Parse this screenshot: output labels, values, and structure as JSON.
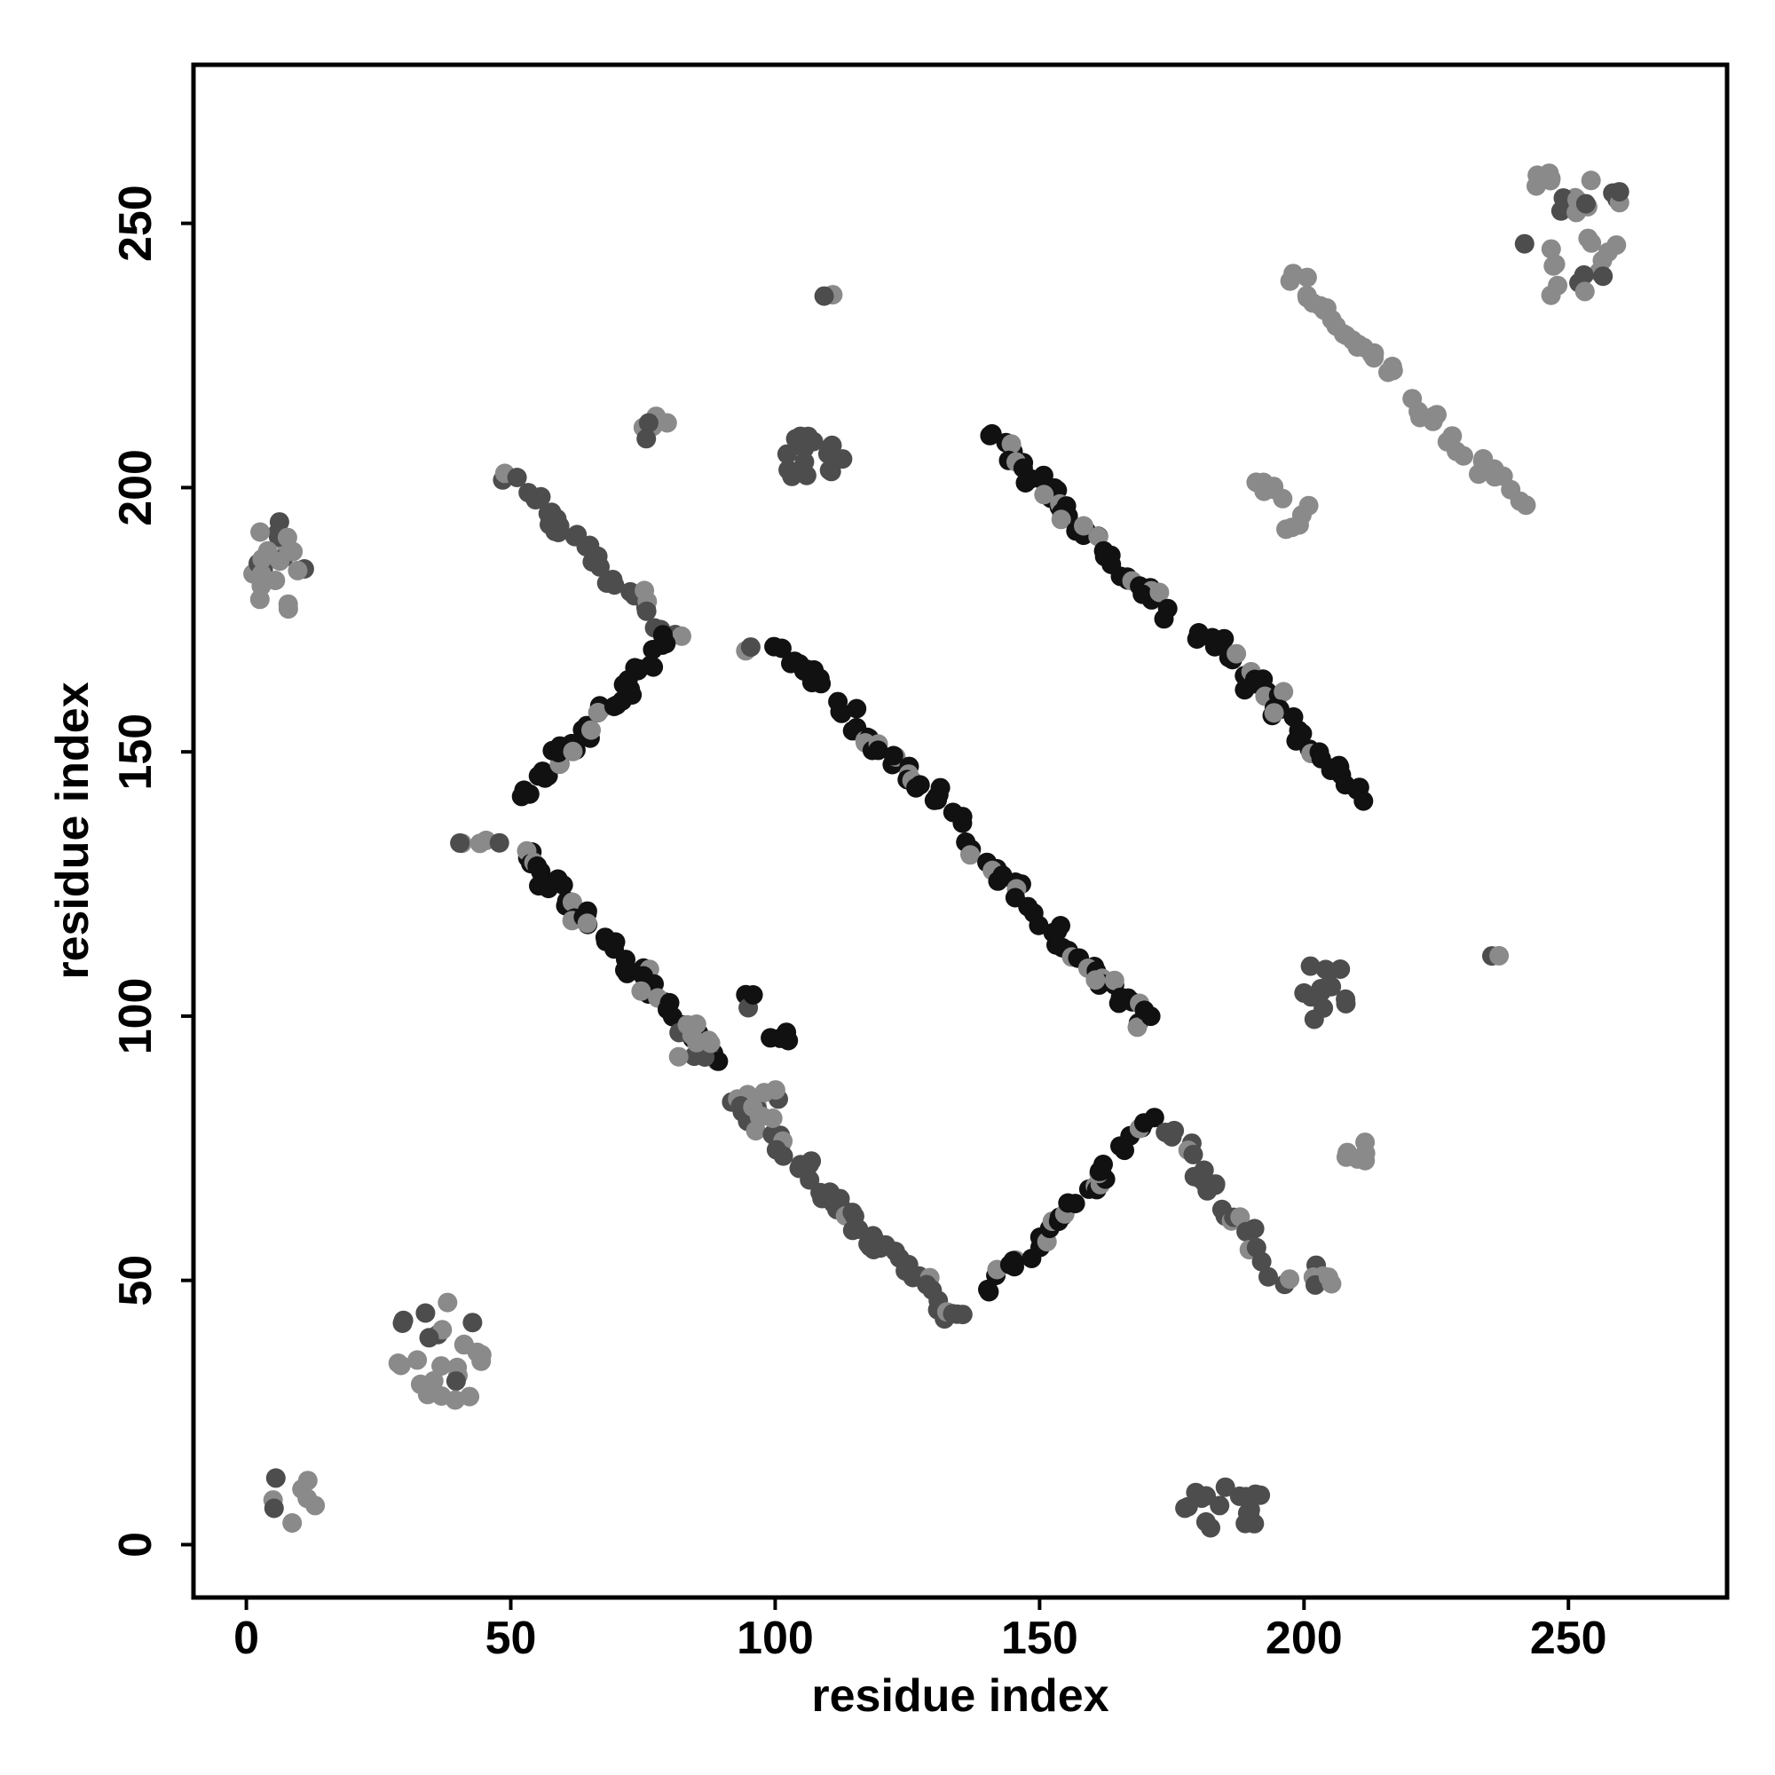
{
  "chart_data": {
    "type": "scatter",
    "title": "",
    "xlabel": "residue index",
    "ylabel": "residue index",
    "xlim": [
      -10,
      280
    ],
    "ylim": [
      -10,
      280
    ],
    "xticks": [
      "0",
      "50",
      "100",
      "150",
      "200",
      "250"
    ],
    "yticks": [
      "0",
      "50",
      "100",
      "150",
      "200",
      "250"
    ],
    "grid": false,
    "legend": "none",
    "colors": {
      "dark": "#111111",
      "mid": "#4d4d4d",
      "light": "#8a8a8a"
    },
    "segments": [
      {
        "shade": "mid",
        "x0": 50,
        "y0": 203,
        "x1": 80,
        "y1": 172,
        "n": 26,
        "jitter": 1.6
      },
      {
        "shade": "dark",
        "x0": 53,
        "y0": 141,
        "x1": 80,
        "y1": 172,
        "n": 26,
        "jitter": 1.6
      },
      {
        "shade": "dark",
        "x0": 52,
        "y0": 131,
        "x1": 88,
        "y1": 93,
        "n": 32,
        "jitter": 1.6
      },
      {
        "shade": "mid",
        "x0": 92,
        "y0": 84,
        "x1": 134,
        "y1": 42,
        "n": 38,
        "jitter": 1.6
      },
      {
        "shade": "dark",
        "x0": 140,
        "y0": 48,
        "x1": 171,
        "y1": 80,
        "n": 26,
        "jitter": 1.6
      },
      {
        "shade": "mid",
        "x0": 175,
        "y0": 78,
        "x1": 196,
        "y1": 50,
        "n": 18,
        "jitter": 1.6
      },
      {
        "shade": "dark",
        "x0": 102,
        "y0": 168,
        "x1": 134,
        "y1": 138,
        "n": 28,
        "jitter": 1.6
      },
      {
        "shade": "dark",
        "x0": 137,
        "y0": 132,
        "x1": 170,
        "y1": 99,
        "n": 28,
        "jitter": 1.6
      },
      {
        "shade": "dark",
        "x0": 141,
        "y0": 211,
        "x1": 174,
        "y1": 176,
        "n": 30,
        "jitter": 1.6
      },
      {
        "shade": "dark",
        "x0": 180,
        "y0": 174,
        "x1": 211,
        "y1": 141,
        "n": 28,
        "jitter": 1.6
      },
      {
        "shade": "light",
        "x0": 198,
        "y0": 240,
        "x1": 217,
        "y1": 222,
        "n": 14,
        "jitter": 1.4
      },
      {
        "shade": "light",
        "x0": 221,
        "y0": 216,
        "x1": 240,
        "y1": 198,
        "n": 14,
        "jitter": 1.4
      },
      {
        "shade": "light",
        "x0": 191,
        "y0": 201,
        "x1": 196,
        "y1": 198,
        "n": 4,
        "jitter": 0.8
      },
      {
        "shade": "light",
        "x0": 197,
        "y0": 192,
        "x1": 201,
        "y1": 196,
        "n": 4,
        "jitter": 0.8
      }
    ],
    "clusters": [
      {
        "shade": "light",
        "cx": 6,
        "cy": 185,
        "rx": 5,
        "ry": 9,
        "n": 22
      },
      {
        "shade": "light",
        "cx": 37,
        "cy": 36,
        "rx": 10,
        "ry": 11,
        "n": 26
      },
      {
        "shade": "light",
        "cx": 9,
        "cy": 9,
        "rx": 5,
        "ry": 5,
        "n": 8
      },
      {
        "shade": "mid",
        "cx": 185,
        "cy": 7,
        "rx": 9,
        "ry": 4,
        "n": 18
      },
      {
        "shade": "mid",
        "cx": 106,
        "cy": 205,
        "rx": 7,
        "ry": 5,
        "n": 16
      },
      {
        "shade": "light",
        "cx": 76,
        "cy": 211,
        "rx": 4,
        "ry": 3,
        "n": 6
      },
      {
        "shade": "mid",
        "cx": 204,
        "cy": 105,
        "rx": 6,
        "ry": 6,
        "n": 14
      },
      {
        "shade": "light",
        "cx": 250,
        "cy": 248,
        "rx": 12,
        "ry": 14,
        "n": 34
      },
      {
        "shade": "light",
        "cx": 203,
        "cy": 52,
        "rx": 3,
        "ry": 4,
        "n": 6
      },
      {
        "shade": "light",
        "cx": 210,
        "cy": 76,
        "rx": 3,
        "ry": 4,
        "n": 6
      },
      {
        "shade": "dark",
        "cx": 102,
        "cy": 96,
        "rx": 3,
        "ry": 1,
        "n": 4
      },
      {
        "shade": "dark",
        "cx": 95,
        "cy": 103,
        "rx": 1,
        "ry": 2,
        "n": 3
      },
      {
        "shade": "light",
        "cx": 95,
        "cy": 169,
        "rx": 1,
        "ry": 1,
        "n": 2
      },
      {
        "shade": "light",
        "cx": 111,
        "cy": 236,
        "rx": 2,
        "ry": 1,
        "n": 2
      },
      {
        "shade": "light",
        "cx": 236,
        "cy": 111,
        "rx": 1,
        "ry": 2,
        "n": 2
      },
      {
        "shade": "light",
        "cx": 40,
        "cy": 133,
        "rx": 1,
        "ry": 1,
        "n": 2
      },
      {
        "shade": "light",
        "cx": 46,
        "cy": 133,
        "rx": 2,
        "ry": 1,
        "n": 3
      },
      {
        "shade": "light",
        "cx": 97,
        "cy": 84,
        "rx": 5,
        "ry": 4,
        "n": 12
      },
      {
        "shade": "light",
        "cx": 84,
        "cy": 95,
        "rx": 4,
        "ry": 4,
        "n": 10
      }
    ]
  }
}
